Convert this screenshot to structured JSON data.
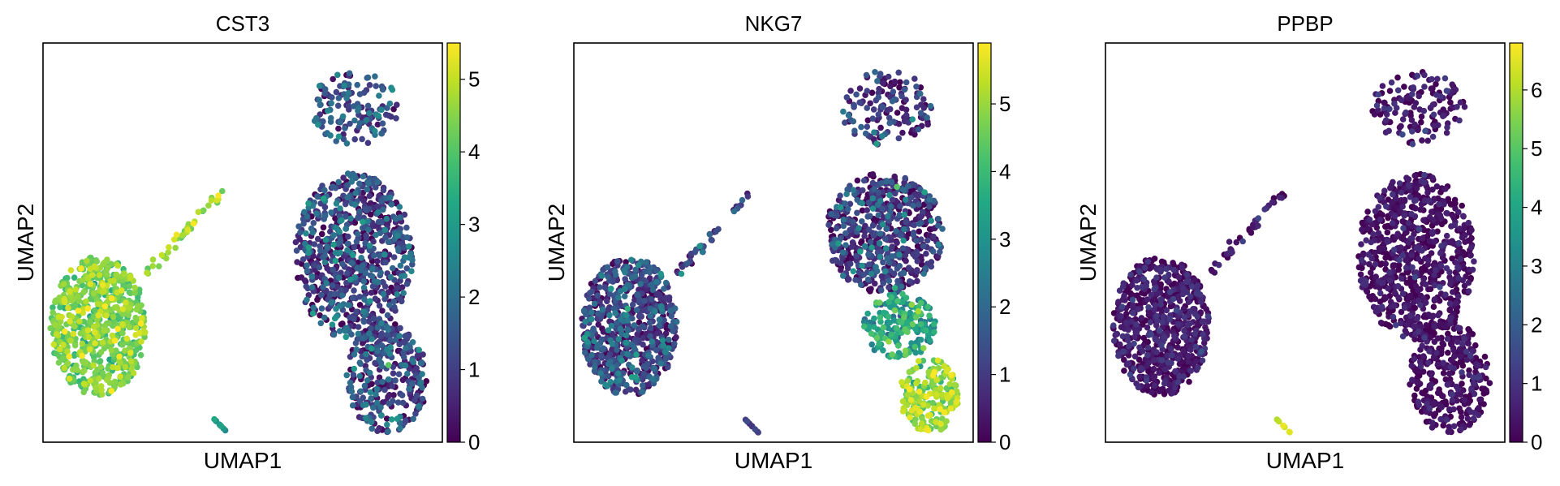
{
  "chart_data": [
    {
      "type": "scatter",
      "title": "CST3",
      "xlabel": "UMAP1",
      "ylabel": "UMAP2",
      "colormap": "viridis",
      "colorbar": {
        "min": 0,
        "max": 5.5,
        "ticks": [
          "0",
          "1",
          "2",
          "3",
          "4",
          "5"
        ]
      },
      "clusters": [
        {
          "x": [
            17.5,
            23.8
          ],
          "y": [
            8.5,
            12.5
          ],
          "n": 140,
          "value_mean": 1.3,
          "value_sd": 0.9
        },
        {
          "x": [
            16.5,
            24.5
          ],
          "y": [
            -2.0,
            7.0
          ],
          "n": 750,
          "value_mean": 0.9,
          "value_sd": 0.9
        },
        {
          "x": [
            20.0,
            25.5
          ],
          "y": [
            -7.0,
            -1.0
          ],
          "n": 320,
          "value_mean": 1.0,
          "value_sd": 0.9
        },
        {
          "x": [
            0.0,
            6.5
          ],
          "y": [
            -5.0,
            2.5
          ],
          "n": 700,
          "value_mean": 4.3,
          "value_sd": 0.5
        },
        {
          "x": [
            6.5,
            11.5
          ],
          "y": [
            1.5,
            6.0
          ],
          "n": 40,
          "value_mean": 4.6,
          "value_sd": 0.5
        },
        {
          "x": [
            11.0,
            12.0
          ],
          "y": [
            -7.0,
            -6.2
          ],
          "n": 10,
          "value_mean": 2.8,
          "value_sd": 0.3
        }
      ]
    },
    {
      "type": "scatter",
      "title": "NKG7",
      "xlabel": "UMAP1",
      "ylabel": "UMAP2",
      "colormap": "viridis",
      "colorbar": {
        "min": 0,
        "max": 5.9,
        "ticks": [
          "0",
          "1",
          "2",
          "3",
          "4",
          "5"
        ]
      },
      "clusters": [
        {
          "x": [
            17.5,
            23.8
          ],
          "y": [
            8.5,
            12.5
          ],
          "n": 140,
          "value_mean": 0.8,
          "value_sd": 0.9
        },
        {
          "x": [
            16.5,
            24.5
          ],
          "y": [
            0.5,
            7.0
          ],
          "n": 600,
          "value_mean": 0.7,
          "value_sd": 1.0
        },
        {
          "x": [
            19.0,
            24.0
          ],
          "y": [
            -3.0,
            0.5
          ],
          "n": 200,
          "value_mean": 3.2,
          "value_sd": 0.8
        },
        {
          "x": [
            21.5,
            25.5
          ],
          "y": [
            -7.0,
            -3.0
          ],
          "n": 200,
          "value_mean": 4.9,
          "value_sd": 0.6
        },
        {
          "x": [
            0.0,
            6.5
          ],
          "y": [
            -5.0,
            2.5
          ],
          "n": 700,
          "value_mean": 1.0,
          "value_sd": 0.9
        },
        {
          "x": [
            6.5,
            11.5
          ],
          "y": [
            1.5,
            6.0
          ],
          "n": 40,
          "value_mean": 1.0,
          "value_sd": 0.8
        },
        {
          "x": [
            11.0,
            12.0
          ],
          "y": [
            -7.0,
            -6.2
          ],
          "n": 10,
          "value_mean": 1.0,
          "value_sd": 0.3
        }
      ]
    },
    {
      "type": "scatter",
      "title": "PPBP",
      "xlabel": "UMAP1",
      "ylabel": "UMAP2",
      "colormap": "viridis",
      "colorbar": {
        "min": 0,
        "max": 6.8,
        "ticks": [
          "0",
          "1",
          "2",
          "3",
          "4",
          "5",
          "6"
        ]
      },
      "clusters": [
        {
          "x": [
            17.5,
            23.8
          ],
          "y": [
            8.5,
            12.5
          ],
          "n": 140,
          "value_mean": 0.3,
          "value_sd": 0.5
        },
        {
          "x": [
            16.5,
            24.5
          ],
          "y": [
            -2.0,
            7.0
          ],
          "n": 750,
          "value_mean": 0.2,
          "value_sd": 0.4
        },
        {
          "x": [
            20.0,
            25.5
          ],
          "y": [
            -7.0,
            -1.0
          ],
          "n": 320,
          "value_mean": 0.2,
          "value_sd": 0.4
        },
        {
          "x": [
            0.0,
            6.5
          ],
          "y": [
            -5.0,
            2.5
          ],
          "n": 700,
          "value_mean": 0.3,
          "value_sd": 0.5
        },
        {
          "x": [
            6.5,
            11.5
          ],
          "y": [
            1.5,
            6.0
          ],
          "n": 40,
          "value_mean": 0.3,
          "value_sd": 0.4
        },
        {
          "x": [
            11.0,
            12.0
          ],
          "y": [
            -7.0,
            -6.2
          ],
          "n": 10,
          "value_mean": 6.3,
          "value_sd": 0.3
        }
      ]
    }
  ],
  "data_range": {
    "x": [
      -0.5,
      26.5
    ],
    "y": [
      -7.5,
      14.0
    ]
  }
}
